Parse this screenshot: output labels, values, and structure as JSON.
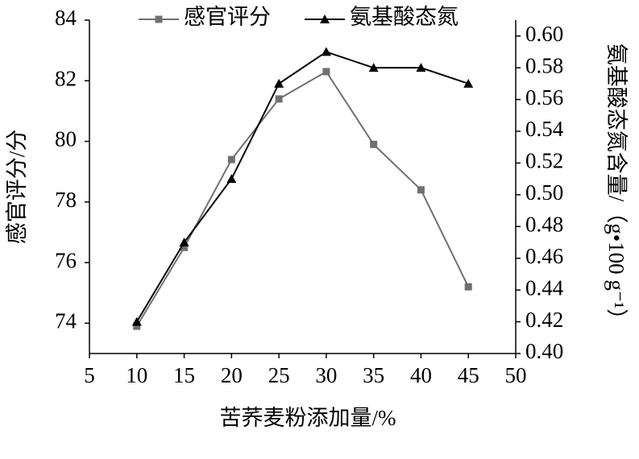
{
  "chart_data": {
    "type": "line",
    "x_label": "苦荞麦粉添加量/%",
    "y_label": "感官评分/分",
    "y2_label": "氨基酸态氮含量/（g•100 g⁻¹）",
    "x": [
      10,
      15,
      20,
      25,
      30,
      35,
      40,
      45
    ],
    "xlim": [
      5,
      50
    ],
    "xticks": [
      5,
      10,
      15,
      20,
      25,
      30,
      35,
      40,
      45,
      50
    ],
    "ylim": [
      73,
      84
    ],
    "yticks": [
      74,
      76,
      78,
      80,
      82,
      84
    ],
    "y2lim": [
      0.4,
      0.61
    ],
    "y2ticks": [
      {
        "value": 0.4,
        "label": "0.40"
      },
      {
        "value": 0.42,
        "label": "0.42"
      },
      {
        "value": 0.44,
        "label": "0.44"
      },
      {
        "value": 0.46,
        "label": "0.46"
      },
      {
        "value": 0.48,
        "label": "0.48"
      },
      {
        "value": 0.5,
        "label": "0.50"
      },
      {
        "value": 0.52,
        "label": "0.52"
      },
      {
        "value": 0.54,
        "label": "0.54"
      },
      {
        "value": 0.56,
        "label": "0.56"
      },
      {
        "value": 0.58,
        "label": "0.58"
      },
      {
        "value": 0.6,
        "label": "0.60"
      }
    ],
    "legend": "top",
    "series": [
      {
        "name": "感官评分",
        "color": "#707070",
        "marker": "square",
        "values": [
          73.9,
          76.5,
          79.4,
          81.4,
          82.3,
          79.9,
          78.4,
          75.2
        ]
      },
      {
        "name": "氨基酸态氮",
        "color": "#000000",
        "marker": "triangle",
        "axis": "y2",
        "values": [
          0.42,
          0.47,
          0.51,
          0.57,
          0.59,
          0.58,
          0.58,
          0.57
        ]
      }
    ]
  }
}
